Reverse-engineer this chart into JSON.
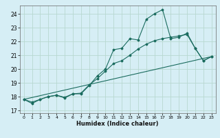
{
  "title": "",
  "xlabel": "Humidex (Indice chaleur)",
  "ylabel": "",
  "background_color": "#d6eef5",
  "grid_color": "#b8d8d0",
  "line_color": "#1a6b5e",
  "xlim": [
    -0.5,
    23.5
  ],
  "ylim": [
    16.8,
    24.6
  ],
  "yticks": [
    17,
    18,
    19,
    20,
    21,
    22,
    23,
    24
  ],
  "xticks": [
    0,
    1,
    2,
    3,
    4,
    5,
    6,
    7,
    8,
    9,
    10,
    11,
    12,
    13,
    14,
    15,
    16,
    17,
    18,
    19,
    20,
    21,
    22,
    23
  ],
  "series1_x": [
    0,
    1,
    2,
    3,
    4,
    5,
    6,
    7,
    8,
    9,
    10,
    11,
    12,
    13,
    14,
    15,
    16,
    17,
    18,
    19,
    20,
    21,
    22,
    23
  ],
  "series1_y": [
    17.8,
    17.5,
    17.8,
    18.0,
    18.1,
    17.9,
    18.2,
    18.2,
    18.8,
    19.5,
    20.0,
    21.4,
    21.5,
    22.2,
    22.1,
    23.6,
    24.0,
    24.3,
    22.2,
    22.3,
    22.6,
    21.5,
    20.6,
    20.9
  ],
  "series2_x": [
    0,
    1,
    2,
    3,
    4,
    5,
    6,
    7,
    8,
    9,
    10,
    11,
    12,
    13,
    14,
    15,
    16,
    17,
    18,
    19,
    20,
    21,
    22,
    23
  ],
  "series2_y": [
    17.8,
    17.6,
    17.8,
    18.0,
    18.1,
    17.95,
    18.2,
    18.25,
    18.85,
    19.3,
    19.85,
    20.4,
    20.6,
    21.0,
    21.45,
    21.8,
    22.05,
    22.2,
    22.3,
    22.4,
    22.5,
    21.5,
    20.6,
    20.9
  ],
  "series3_x": [
    0,
    23
  ],
  "series3_y": [
    17.8,
    20.9
  ]
}
